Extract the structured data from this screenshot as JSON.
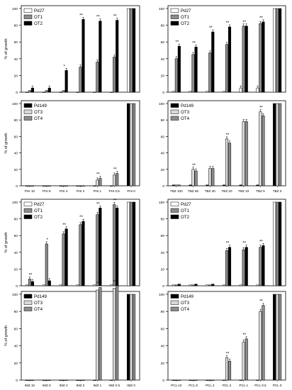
{
  "chart_data": [
    {
      "type": "bar",
      "title": "",
      "xlabel": "",
      "ylabel": "% of growth",
      "ylim": [
        0,
        100
      ],
      "yticks": [
        0,
        20,
        40,
        60,
        80,
        100
      ],
      "categories": [
        "PHI 10",
        "PHI 8",
        "PHI 4",
        "PHI 2",
        "PHI 1",
        "PHI 0.5",
        "PHI 0"
      ],
      "legend": {
        "placement": "top-left"
      },
      "top": {
        "series": [
          {
            "name": "Pd27",
            "fill": "#ffffff",
            "values": [
              0,
              0,
              0,
              0,
              0,
              0,
              100
            ]
          },
          {
            "name": "OT1",
            "fill": "#8c8c8c",
            "values": [
              2,
              2,
              2,
              30,
              36,
              42,
              100
            ]
          },
          {
            "name": "OT2",
            "fill": "#000000",
            "values": [
              5,
              5,
              26,
              87,
              85,
              86,
              100
            ]
          }
        ],
        "stars": [
          "",
          "",
          "*",
          "**",
          "**",
          "**",
          ""
        ]
      },
      "bottom": {
        "series": [
          {
            "name": "Pd149",
            "fill": "#000000",
            "values": [
              0,
              0,
              0,
              0,
              0,
              0,
              100
            ]
          },
          {
            "name": "OT3",
            "fill": "#d9d9d9",
            "values": [
              0,
              0,
              0,
              0,
              7,
              13,
              100
            ]
          },
          {
            "name": "OT4",
            "fill": "#8c8c8c",
            "values": [
              0,
              0,
              0,
              0,
              9,
              15,
              100
            ]
          }
        ],
        "stars": [
          "",
          "",
          "",
          "",
          "**",
          "**",
          ""
        ]
      }
    },
    {
      "type": "bar",
      "title": "",
      "xlabel": "",
      "ylabel": "",
      "ylim": [
        0,
        100
      ],
      "yticks": [
        0,
        20,
        40,
        60,
        80,
        100
      ],
      "categories": [
        "TBZ 100",
        "TBZ 80",
        "TBZ 40",
        "TBZ 20",
        "TBZ 10",
        "TBZ 5",
        "TBZ 0"
      ],
      "legend": {
        "placement": "top-left"
      },
      "top": {
        "series": [
          {
            "name": "Pd27",
            "fill": "#ffffff",
            "values": [
              1,
              1,
              1,
              1,
              5,
              5,
              100
            ]
          },
          {
            "name": "OT1",
            "fill": "#8c8c8c",
            "values": [
              40,
              45,
              47,
              57,
              79,
              82,
              100
            ]
          },
          {
            "name": "OT2",
            "fill": "#000000",
            "values": [
              55,
              54,
              72,
              78,
              79,
              84,
              100
            ]
          }
        ],
        "stars": [
          "**",
          "**",
          "**",
          "**",
          "**",
          "**",
          ""
        ]
      },
      "bottom": {
        "series": [
          {
            "name": "Pd149",
            "fill": "#000000",
            "values": [
              1,
              1,
              1,
              1,
              1,
              1,
              100
            ]
          },
          {
            "name": "OT3",
            "fill": "#d9d9d9",
            "values": [
              1,
              20,
              21,
              57,
              78,
              90,
              100
            ]
          },
          {
            "name": "OT4",
            "fill": "#8c8c8c",
            "values": [
              1,
              18,
              21,
              52,
              78,
              85,
              100
            ]
          }
        ],
        "stars": [
          "",
          "**",
          "",
          "**",
          "",
          "**",
          ""
        ]
      }
    },
    {
      "type": "bar",
      "title": "",
      "xlabel": "",
      "ylabel": "% of growth",
      "ylim": [
        0,
        100
      ],
      "yticks": [
        0,
        20,
        40,
        60,
        80,
        100
      ],
      "categories": [
        "IMZ 10",
        "IMZ 8",
        "IMZ 4",
        "IMZ 2",
        "IMZ 1",
        "IMZ 0.5",
        "IMZ 0"
      ],
      "legend": {
        "placement": "top-left"
      },
      "top": {
        "series": [
          {
            "name": "Pd27",
            "fill": "#ffffff",
            "values": [
              1,
              1,
              1,
              1,
              1,
              1,
              100
            ]
          },
          {
            "name": "OT1",
            "fill": "#8c8c8c",
            "values": [
              8,
              50,
              62,
              73,
              85,
              97,
              100
            ]
          },
          {
            "name": "OT2",
            "fill": "#000000",
            "values": [
              5,
              6,
              68,
              77,
              93,
              93,
              100
            ]
          }
        ],
        "stars": [
          "**",
          "*",
          "**",
          "**",
          "**",
          "**",
          ""
        ]
      },
      "bottom": {
        "series": [
          {
            "name": "Pd149",
            "fill": "#000000",
            "values": [
              0,
              0,
              0,
              0,
              0,
              0,
              100
            ]
          },
          {
            "name": "OT3",
            "fill": "#d9d9d9",
            "values": [
              0,
              0,
              0,
              0,
              105,
              107,
              100
            ]
          },
          {
            "name": "OT4",
            "fill": "#8c8c8c",
            "values": [
              0,
              0,
              0,
              0,
              108,
              110,
              100
            ]
          }
        ],
        "stars": [
          "",
          "",
          "",
          "",
          "**",
          "**",
          ""
        ]
      }
    },
    {
      "type": "bar",
      "title": "",
      "xlabel": "",
      "ylabel": "",
      "ylim": [
        0,
        100
      ],
      "yticks": [
        0,
        20,
        40,
        60,
        80,
        100
      ],
      "categories": [
        "PCL 10",
        "PCL 8",
        "PCL 4",
        "PCL 2",
        "PCL 1",
        "PCL 0.5",
        "PCL 0"
      ],
      "legend": {
        "placement": "top-left"
      },
      "top": {
        "series": [
          {
            "name": "Pd27",
            "fill": "#ffffff",
            "values": [
              1,
              1,
              1,
              1,
              1,
              1,
              100
            ]
          },
          {
            "name": "OT1",
            "fill": "#8c8c8c",
            "values": [
              1,
              1,
              1,
              42,
              43,
              46,
              100
            ]
          },
          {
            "name": "OT2",
            "fill": "#000000",
            "values": [
              2,
              2,
              2,
              46,
              46,
              48,
              100
            ]
          }
        ],
        "stars": [
          "",
          "",
          "",
          "**",
          "**",
          "**",
          ""
        ]
      },
      "bottom": {
        "series": [
          {
            "name": "Pd149",
            "fill": "#000000",
            "values": [
              0,
              0,
              0,
              0,
              0,
              0,
              100
            ]
          },
          {
            "name": "OT3",
            "fill": "#d9d9d9",
            "values": [
              0,
              0,
              0,
              26,
              44,
              80,
              100
            ]
          },
          {
            "name": "OT4",
            "fill": "#8c8c8c",
            "values": [
              0,
              0,
              0,
              22,
              48,
              87,
              100
            ]
          }
        ],
        "stars": [
          "",
          "",
          "",
          "**",
          "**",
          "**",
          ""
        ]
      }
    }
  ]
}
